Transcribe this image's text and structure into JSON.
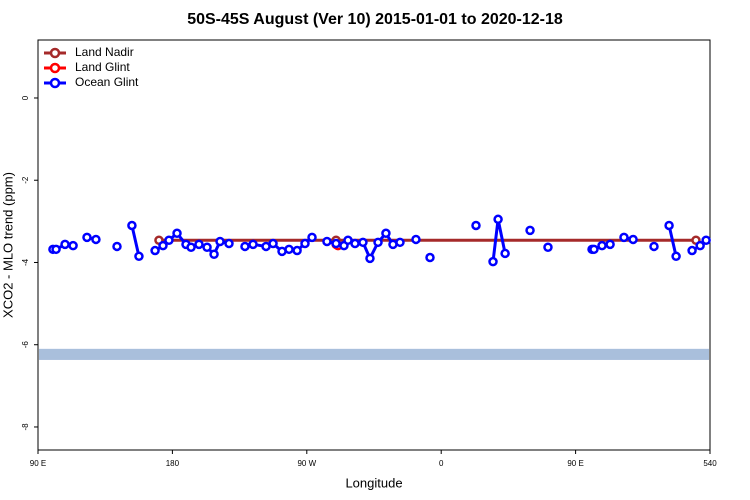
{
  "chart_data": {
    "type": "line",
    "title": "50S-45S August (Ver 10)   2015-01-01 to 2020-12-18",
    "x_label": "Longitude",
    "y_label": "XCO2 - MLO trend (ppm)",
    "xlim": [
      90,
      540
    ],
    "xticks": [
      {
        "value": 90,
        "label": "90 E"
      },
      180,
      {
        "value": 270,
        "label": "90 W"
      },
      {
        "value": 360,
        "label": "0"
      },
      {
        "value": 450,
        "label": "90 E"
      },
      540
    ],
    "ylim": [
      -8.56,
      1.41
    ],
    "yticks": [
      0,
      -2,
      -4,
      -6,
      -8
    ],
    "band": [
      -6.37,
      -6.1
    ],
    "band_color": "#a9bfdc",
    "legend": "top-left",
    "series": [
      {
        "name": "Land Nadir",
        "color": "#a52a2a",
        "x": [
          171.0,
          289.6,
          530.6
        ],
        "values": [
          -3.46,
          -3.46,
          -3.46
        ]
      },
      {
        "name": "Land Glint",
        "color": "#ff0000",
        "x": [
          289.6,
          290.9
        ],
        "values": [
          -3.56,
          -3.59
        ]
      },
      {
        "name": "Ocean Glint",
        "color": "#0000ff",
        "x": [
          100.0,
          102.1,
          108.1,
          113.5,
          null,
          122.8,
          128.8,
          null,
          142.9,
          null,
          152.9,
          157.6,
          null,
          168.4,
          173.7,
          177.7,
          183.1,
          189.1,
          192.5,
          197.8,
          203.2,
          207.9,
          211.9,
          217.9,
          null,
          228.6,
          234.0,
          242.7,
          247.4,
          253.4,
          258.1,
          263.5,
          268.8,
          273.5,
          null,
          283.5,
          289.6,
          294.9,
          297.6,
          302.3,
          307.6,
          312.3,
          317.7,
          323.0,
          327.7,
          332.4,
          null,
          343.1,
          null,
          352.5,
          null,
          383.3,
          null,
          394.7,
          398.1,
          402.8,
          null,
          419.5,
          null,
          431.5,
          null,
          461.0,
          462.3,
          467.7,
          473.1,
          null,
          482.4,
          488.5,
          null,
          502.5,
          null,
          512.6,
          517.3,
          null,
          528.0,
          533.4,
          537.4
        ],
        "values": [
          -3.68,
          -3.68,
          -3.56,
          -3.59,
          null,
          -3.39,
          -3.44,
          null,
          -3.61,
          null,
          -3.1,
          -3.85,
          null,
          -3.71,
          -3.59,
          -3.46,
          -3.29,
          -3.56,
          -3.63,
          -3.56,
          -3.63,
          -3.8,
          -3.49,
          -3.54,
          null,
          -3.61,
          -3.56,
          -3.61,
          -3.54,
          -3.73,
          -3.68,
          -3.71,
          -3.54,
          -3.39,
          null,
          -3.49,
          -3.54,
          -3.59,
          -3.46,
          -3.54,
          -3.51,
          -3.9,
          -3.51,
          -3.29,
          -3.56,
          -3.51,
          null,
          -3.44,
          null,
          -3.88,
          null,
          -3.1,
          null,
          -3.98,
          -2.95,
          -3.78,
          null,
          -3.22,
          null,
          -3.63,
          null,
          -3.68,
          -3.68,
          -3.59,
          -3.56,
          null,
          -3.39,
          -3.44,
          null,
          -3.61,
          null,
          -3.1,
          -3.85,
          null,
          -3.71,
          -3.59,
          -3.46
        ]
      }
    ]
  }
}
